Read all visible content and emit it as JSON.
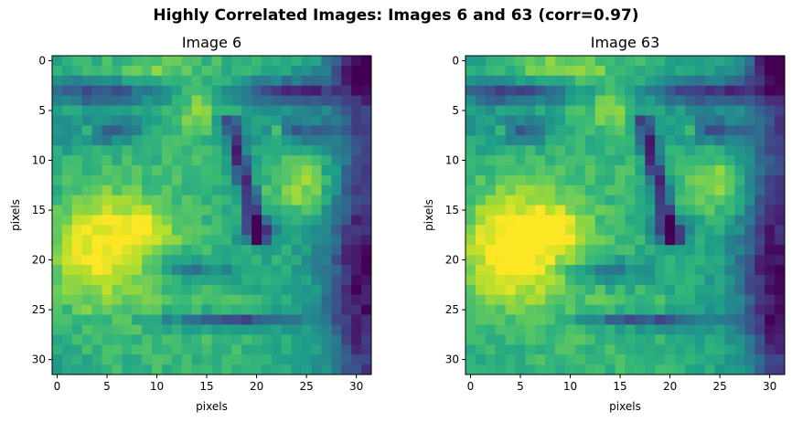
{
  "chart_data": {
    "type": "heatmap",
    "title": "Highly Correlated Images: Images 6 and 63 (corr=0.97)",
    "colormap": "viridis",
    "grid": false,
    "panels": [
      {
        "title": "Image 6",
        "xlabel": "pixels",
        "ylabel": "pixels",
        "xticks": [
          0,
          5,
          10,
          15,
          20,
          25,
          30
        ],
        "yticks": [
          0,
          5,
          10,
          15,
          20,
          25,
          30
        ],
        "xlim": [
          -0.5,
          31.5
        ],
        "ylim": [
          31.5,
          -0.5
        ]
      },
      {
        "title": "Image 63",
        "xlabel": "pixels",
        "ylabel": "pixels",
        "xticks": [
          0,
          5,
          10,
          15,
          20,
          25,
          30
        ],
        "yticks": [
          0,
          5,
          10,
          15,
          20,
          25,
          30
        ],
        "xlim": [
          -0.5,
          31.5
        ],
        "ylim": [
          31.5,
          -0.5
        ]
      }
    ]
  }
}
